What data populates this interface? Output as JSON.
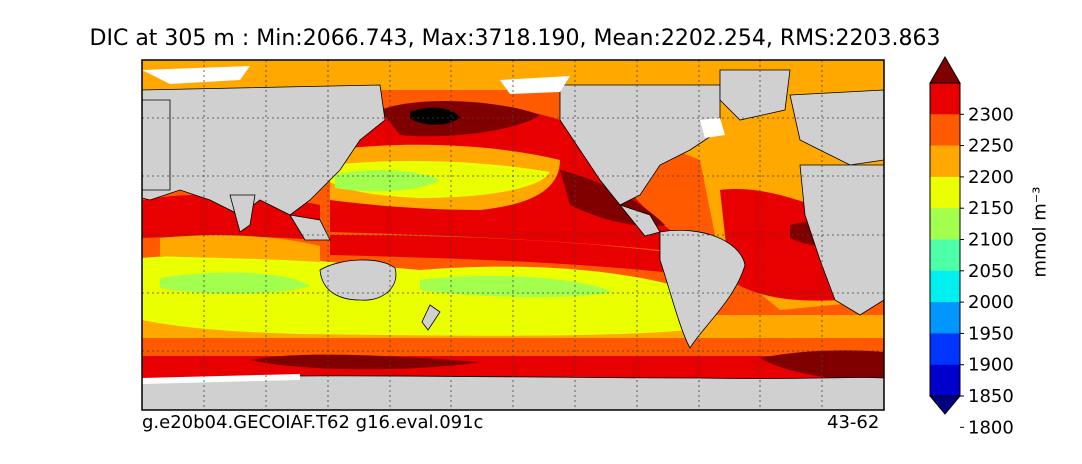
{
  "title": "DIC at 305 m : Min:2066.743, Max:3718.190, Mean:2202.254, RMS:2203.863",
  "footer_left": "g.e20b04.GECOIAF.T62 g16.eval.091c",
  "footer_right": "43-62",
  "colorbar": {
    "unit_label": "mmol m⁻³",
    "ticks": [
      "2300",
      "2250",
      "2200",
      "2150",
      "2100",
      "2050",
      "2000",
      "1950",
      "1900",
      "1850",
      "1800"
    ],
    "levels_colors": [
      {
        "level": "<1800",
        "color": "#000080"
      },
      {
        "level": "1800-1850",
        "color": "#0000cd"
      },
      {
        "level": "1850-1900",
        "color": "#0035ff"
      },
      {
        "level": "1900-1950",
        "color": "#0096ff"
      },
      {
        "level": "1950-2000",
        "color": "#00f0f0"
      },
      {
        "level": "2000-2050",
        "color": "#4dffa6"
      },
      {
        "level": "2050-2100",
        "color": "#a3ff4d"
      },
      {
        "level": "2100-2150",
        "color": "#eaff00"
      },
      {
        "level": "2150-2200",
        "color": "#ffa800"
      },
      {
        "level": "2200-2250",
        "color": "#ff5a00"
      },
      {
        "level": "2250-2300",
        "color": "#e80000"
      },
      {
        "level": ">2300",
        "color": "#800000"
      }
    ]
  },
  "map_colors": {
    "land": "#d0d0d0",
    "ice": "#ffffff",
    "deep": "#800000",
    "red": "#e80000",
    "orange": "#ff5a00",
    "amber": "#ffa800",
    "yellow": "#eaff00",
    "green": "#a3ff4d",
    "aqua": "#4dffa6"
  }
}
